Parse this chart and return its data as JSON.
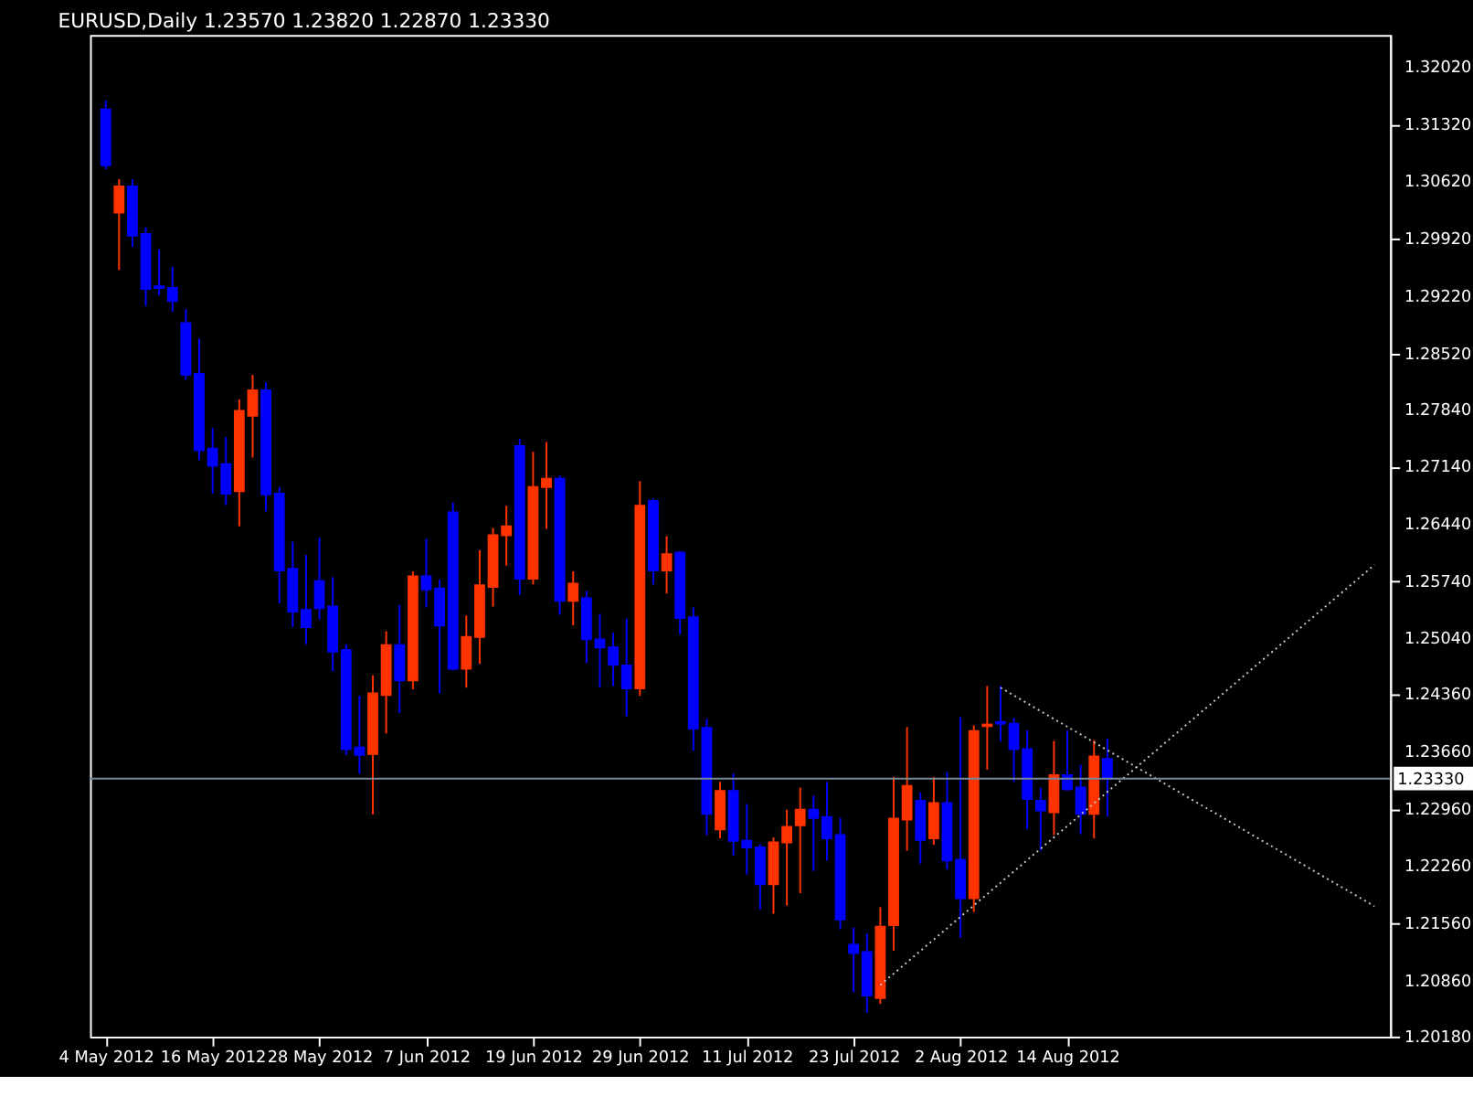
{
  "chart_data": {
    "type": "candlestick",
    "title": "EURUSD,Daily  1.23570 1.23820 1.22870 1.23330",
    "categories": [
      "4 May 2012",
      null,
      null,
      null,
      null,
      null,
      null,
      null,
      "16 May 2012",
      null,
      null,
      null,
      null,
      null,
      null,
      null,
      "28 May 2012",
      null,
      null,
      null,
      null,
      null,
      null,
      null,
      "7 Jun 2012",
      null,
      null,
      null,
      null,
      null,
      null,
      null,
      "19 Jun 2012",
      null,
      null,
      null,
      null,
      null,
      null,
      null,
      "29 Jun 2012",
      null,
      null,
      null,
      null,
      null,
      null,
      null,
      "11 Jul 2012",
      null,
      null,
      null,
      null,
      null,
      null,
      null,
      "23 Jul 2012",
      null,
      null,
      null,
      null,
      null,
      null,
      null,
      "2 Aug 2012",
      null,
      null,
      null,
      null,
      null,
      null,
      null,
      "14 Aug 2012",
      null,
      null,
      null,
      null,
      null,
      null,
      null,
      null,
      null,
      null,
      null,
      null,
      null,
      null,
      null,
      null,
      null,
      null,
      null,
      null,
      null,
      null,
      null
    ],
    "ohlc": [
      [
        1.315,
        1.3161,
        1.3077,
        1.3082
      ],
      [
        1.3024,
        1.3065,
        1.2954,
        1.3056
      ],
      [
        1.3056,
        1.3065,
        1.2982,
        1.2996
      ],
      [
        1.2998,
        1.3006,
        1.291,
        1.2931
      ],
      [
        1.2934,
        1.2979,
        1.2923,
        1.2932
      ],
      [
        1.2932,
        1.2958,
        1.2903,
        1.2916
      ],
      [
        1.2889,
        1.2906,
        1.282,
        1.2826
      ],
      [
        1.2827,
        1.287,
        1.2722,
        1.2734
      ],
      [
        1.2736,
        1.2761,
        1.2681,
        1.2715
      ],
      [
        1.2717,
        1.275,
        1.2667,
        1.2681
      ],
      [
        1.2684,
        1.2796,
        1.2641,
        1.2782
      ],
      [
        1.2776,
        1.2826,
        1.2725,
        1.2807
      ],
      [
        1.2807,
        1.2817,
        1.2659,
        1.268
      ],
      [
        1.2681,
        1.2689,
        1.2547,
        1.2587
      ],
      [
        1.2589,
        1.2622,
        1.2518,
        1.2537
      ],
      [
        1.2539,
        1.2606,
        1.2497,
        1.2518
      ],
      [
        1.2574,
        1.2627,
        1.2527,
        1.2541
      ],
      [
        1.2543,
        1.2579,
        1.2464,
        1.2488
      ],
      [
        1.249,
        1.2497,
        1.2362,
        1.2369
      ],
      [
        1.2371,
        1.2434,
        1.2339,
        1.2362
      ],
      [
        1.2363,
        1.2459,
        1.2289,
        1.2437
      ],
      [
        1.2435,
        1.2513,
        1.2388,
        1.2496
      ],
      [
        1.2496,
        1.2545,
        1.2413,
        1.2453
      ],
      [
        1.2453,
        1.2586,
        1.2442,
        1.258
      ],
      [
        1.258,
        1.2626,
        1.2542,
        1.2564
      ],
      [
        1.2565,
        1.2576,
        1.2437,
        1.252
      ],
      [
        1.2658,
        1.267,
        1.2465,
        1.2467
      ],
      [
        1.2467,
        1.2532,
        1.2444,
        1.2506
      ],
      [
        1.2506,
        1.2612,
        1.2473,
        1.2569
      ],
      [
        1.2567,
        1.2639,
        1.2543,
        1.263
      ],
      [
        1.263,
        1.2666,
        1.2593,
        1.2641
      ],
      [
        1.2739,
        1.2748,
        1.2557,
        1.2577
      ],
      [
        1.2577,
        1.2732,
        1.257,
        1.2689
      ],
      [
        1.2689,
        1.2744,
        1.2638,
        1.2699
      ],
      [
        1.2699,
        1.2703,
        1.2533,
        1.255
      ],
      [
        1.255,
        1.2586,
        1.252,
        1.2571
      ],
      [
        1.2553,
        1.2562,
        1.2474,
        1.2503
      ],
      [
        1.2503,
        1.2534,
        1.2444,
        1.2493
      ],
      [
        1.2493,
        1.2511,
        1.2446,
        1.2472
      ],
      [
        1.2471,
        1.2528,
        1.2409,
        1.2443
      ],
      [
        1.2443,
        1.2696,
        1.2434,
        1.2666
      ],
      [
        1.2672,
        1.2675,
        1.257,
        1.2587
      ],
      [
        1.2587,
        1.2629,
        1.2559,
        1.2607
      ],
      [
        1.2609,
        1.261,
        1.2509,
        1.2529
      ],
      [
        1.253,
        1.2542,
        1.2367,
        1.2394
      ],
      [
        1.2395,
        1.2406,
        1.2264,
        1.229
      ],
      [
        1.2271,
        1.2329,
        1.226,
        1.2318
      ],
      [
        1.2318,
        1.2339,
        1.2239,
        1.2257
      ],
      [
        1.2257,
        1.2302,
        1.2216,
        1.2249
      ],
      [
        1.2249,
        1.2253,
        1.2173,
        1.2204
      ],
      [
        1.2204,
        1.2261,
        1.2168,
        1.2255
      ],
      [
        1.2255,
        1.2295,
        1.2178,
        1.2274
      ],
      [
        1.2276,
        1.2322,
        1.2193,
        1.2295
      ],
      [
        1.2295,
        1.2312,
        1.222,
        1.2285
      ],
      [
        1.2286,
        1.2329,
        1.2233,
        1.226
      ],
      [
        1.2264,
        1.2285,
        1.2149,
        1.2161
      ],
      [
        1.213,
        1.2151,
        1.2072,
        1.212
      ],
      [
        1.2121,
        1.2144,
        1.2047,
        1.2068
      ],
      [
        1.2065,
        1.2176,
        1.2058,
        1.2152
      ],
      [
        1.2154,
        1.2335,
        1.2123,
        1.2284
      ],
      [
        1.2283,
        1.2396,
        1.2245,
        1.2324
      ],
      [
        1.2306,
        1.2316,
        1.2229,
        1.2258
      ],
      [
        1.226,
        1.2335,
        1.2252,
        1.2303
      ],
      [
        1.2303,
        1.2341,
        1.2222,
        1.2233
      ],
      [
        1.2234,
        1.2408,
        1.2139,
        1.2187
      ],
      [
        1.2187,
        1.2398,
        1.217,
        1.2391
      ],
      [
        1.2397,
        1.2446,
        1.2344,
        1.2399
      ],
      [
        1.2402,
        1.2446,
        1.2378,
        1.24
      ],
      [
        1.24,
        1.2407,
        1.2329,
        1.2369
      ],
      [
        1.2369,
        1.2392,
        1.2271,
        1.2308
      ],
      [
        1.2306,
        1.2322,
        1.2245,
        1.2294
      ],
      [
        1.2292,
        1.2379,
        1.2264,
        1.2337
      ],
      [
        1.2337,
        1.2392,
        1.2318,
        1.232
      ],
      [
        1.2322,
        1.235,
        1.2265,
        1.229
      ],
      [
        1.229,
        1.238,
        1.226,
        1.236
      ],
      [
        1.2357,
        1.2382,
        1.2287,
        1.2333
      ],
      null,
      null,
      null,
      null,
      null,
      null,
      null,
      null,
      null,
      null,
      null,
      null,
      null,
      null,
      null,
      null,
      null,
      null,
      null,
      null
    ],
    "colors": [
      "#0000ff",
      "#ff3300",
      "#0000ff",
      "#0000ff",
      "#0000ff",
      "#0000ff",
      "#0000ff",
      "#0000ff",
      "#0000ff",
      "#0000ff",
      "#ff3300",
      "#ff3300",
      "#0000ff",
      "#0000ff",
      "#0000ff",
      "#0000ff",
      "#0000ff",
      "#0000ff",
      "#0000ff",
      "#0000ff",
      "#ff3300",
      "#ff3300",
      "#0000ff",
      "#ff3300",
      "#0000ff",
      "#0000ff",
      "#0000ff",
      "#ff3300",
      "#ff3300",
      "#ff3300",
      "#ff3300",
      "#0000ff",
      "#ff3300",
      "#ff3300",
      "#0000ff",
      "#ff3300",
      "#0000ff",
      "#0000ff",
      "#0000ff",
      "#0000ff",
      "#ff3300",
      "#0000ff",
      "#ff3300",
      "#0000ff",
      "#0000ff",
      "#0000ff",
      "#ff3300",
      "#0000ff",
      "#0000ff",
      "#0000ff",
      "#ff3300",
      "#ff3300",
      "#ff3300",
      "#0000ff",
      "#0000ff",
      "#0000ff",
      "#0000ff",
      "#0000ff",
      "#ff3300",
      "#ff3300",
      "#ff3300",
      "#0000ff",
      "#ff3300",
      "#0000ff",
      "#0000ff",
      "#ff3300",
      "#ff3300",
      "#0000ff",
      "#0000ff",
      "#0000ff",
      "#0000ff",
      "#ff3300",
      "#0000ff",
      "#0000ff",
      "#ff3300",
      "#0000ff",
      null,
      null,
      null,
      null,
      null,
      null,
      null,
      null,
      null,
      null,
      null,
      null,
      null,
      null,
      null,
      null,
      null,
      null,
      null,
      null
    ],
    "series": [
      {
        "type": "line",
        "color": "#c8c8c8",
        "line_style": "dotted",
        "values": [
          null,
          null,
          null,
          null,
          null,
          null,
          null,
          null,
          null,
          null,
          null,
          null,
          null,
          null,
          null,
          null,
          null,
          null,
          null,
          null,
          null,
          null,
          null,
          null,
          null,
          null,
          null,
          null,
          null,
          null,
          null,
          null,
          null,
          null,
          null,
          null,
          null,
          null,
          null,
          null,
          null,
          null,
          null,
          null,
          null,
          null,
          null,
          null,
          null,
          null,
          null,
          null,
          null,
          null,
          null,
          null,
          null,
          null,
          1.2081,
          null,
          null,
          null,
          null,
          null,
          null,
          null,
          null,
          null,
          null,
          null,
          null,
          null,
          null,
          null,
          null,
          null,
          null,
          null,
          null,
          null,
          null,
          null,
          null,
          null,
          null,
          null,
          null,
          null,
          null,
          null,
          null,
          null,
          null,
          null,
          null,
          1.2594
        ]
      },
      {
        "type": "line",
        "color": "#c8c8c8",
        "line_style": "dotted",
        "values": [
          null,
          null,
          null,
          null,
          null,
          null,
          null,
          null,
          null,
          null,
          null,
          null,
          null,
          null,
          null,
          null,
          null,
          null,
          null,
          null,
          null,
          null,
          null,
          null,
          null,
          null,
          null,
          null,
          null,
          null,
          null,
          null,
          null,
          null,
          null,
          null,
          null,
          null,
          null,
          null,
          null,
          null,
          null,
          null,
          null,
          null,
          null,
          null,
          null,
          null,
          null,
          null,
          null,
          null,
          null,
          null,
          null,
          null,
          null,
          null,
          null,
          null,
          null,
          null,
          null,
          null,
          null,
          1.2444,
          null,
          null,
          null,
          null,
          null,
          null,
          null,
          null,
          null,
          null,
          null,
          null,
          null,
          null,
          null,
          null,
          null,
          null,
          null,
          null,
          null,
          null,
          null,
          null,
          null,
          null,
          null,
          1.2177
        ]
      }
    ],
    "ref_lines": [
      {
        "axis": "y",
        "value": 1.2333,
        "label": "1.23330",
        "color": "#778899"
      }
    ],
    "ylim": [
      1.2018,
      1.3241
    ],
    "yticks": [
      {
        "value": 1.3202,
        "label": "1.32020"
      },
      {
        "value": 1.3132,
        "label": "1.31320"
      },
      {
        "value": 1.3062,
        "label": "1.30620"
      },
      {
        "value": 1.2992,
        "label": "1.29920"
      },
      {
        "value": 1.2922,
        "label": "1.29220"
      },
      {
        "value": 1.2852,
        "label": "1.28520"
      },
      {
        "value": 1.2784,
        "label": "1.27840"
      },
      {
        "value": 1.2714,
        "label": "1.27140"
      },
      {
        "value": 1.2644,
        "label": "1.26440"
      },
      {
        "value": 1.2574,
        "label": "1.25740"
      },
      {
        "value": 1.2504,
        "label": "1.25040"
      },
      {
        "value": 1.2436,
        "label": "1.24360"
      },
      {
        "value": 1.2366,
        "label": "1.23660"
      },
      {
        "value": 1.2296,
        "label": "1.22960"
      },
      {
        "value": 1.2226,
        "label": "1.22260"
      },
      {
        "value": 1.2156,
        "label": "1.21560"
      },
      {
        "value": 1.2086,
        "label": "1.20860"
      },
      {
        "value": 1.2018,
        "label": "1.20180"
      }
    ],
    "grid": false
  }
}
